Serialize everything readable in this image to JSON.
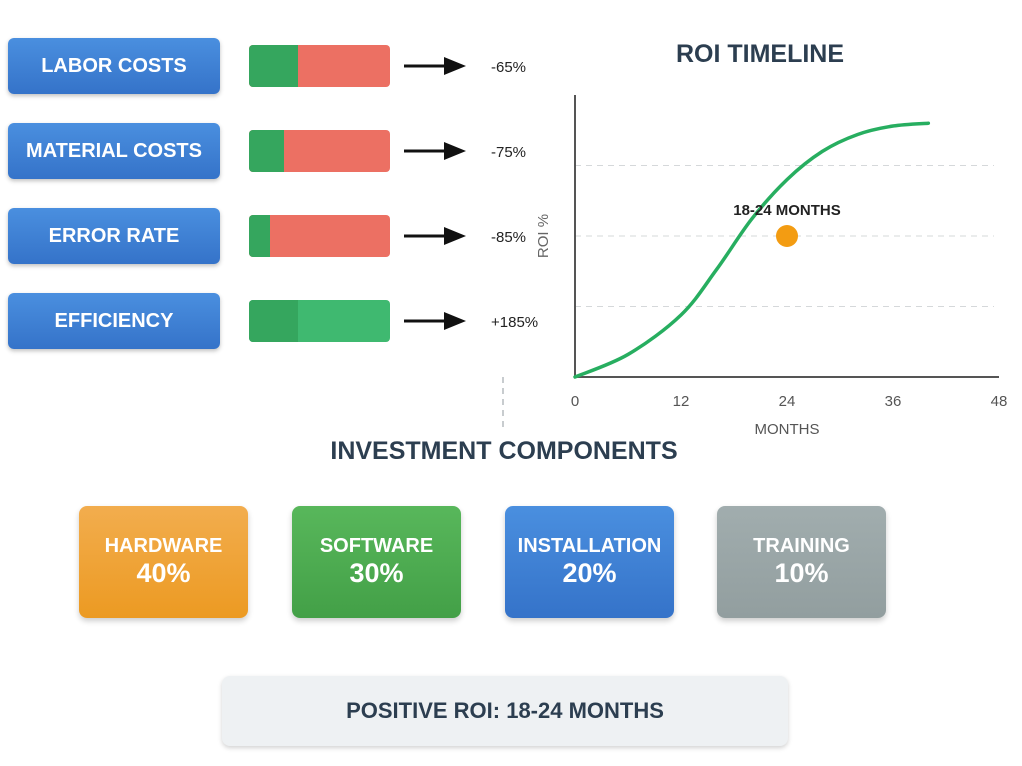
{
  "metrics": [
    {
      "label": "LABOR COSTS",
      "change": "-65%",
      "fill": 0.35,
      "kind": "reduction"
    },
    {
      "label": "MATERIAL COSTS",
      "change": "-75%",
      "fill": 0.25,
      "kind": "reduction"
    },
    {
      "label": "ERROR RATE",
      "change": "-85%",
      "fill": 0.15,
      "kind": "reduction"
    },
    {
      "label": "EFFICIENCY",
      "change": "+185%",
      "fill": 0.35,
      "kind": "increase"
    }
  ],
  "chart_data": {
    "type": "line",
    "title": "ROI TIMELINE",
    "xlabel": "MONTHS",
    "ylabel": "ROI %",
    "x_ticks": [
      0,
      12,
      24,
      36,
      48
    ],
    "xlim": [
      0,
      48
    ],
    "grid": "dashed horizontal",
    "series": [
      {
        "color": "#27ae60",
        "x": [
          0,
          6,
          12,
          16,
          20,
          24,
          28,
          32,
          36,
          40
        ],
        "y": [
          0,
          8,
          22,
          38,
          56,
          70,
          80,
          86,
          89,
          90
        ]
      }
    ],
    "marker": {
      "x": 24,
      "y": 50,
      "label": "18-24 MONTHS",
      "color": "#f39c12"
    }
  },
  "components": {
    "title": "INVESTMENT COMPONENTS",
    "items": [
      {
        "name": "HARDWARE",
        "pct": "40%"
      },
      {
        "name": "SOFTWARE",
        "pct": "30%"
      },
      {
        "name": "INSTALLATION",
        "pct": "20%"
      },
      {
        "name": "TRAINING",
        "pct": "10%"
      }
    ]
  },
  "summary": "POSITIVE ROI: 18-24 MONTHS",
  "colors": {
    "button_blue": "#3f82d4",
    "reduction_bar": "#ec7063",
    "increase_bar": "#3fb970",
    "base_green": "#35a65e",
    "hardware": "#f0a030",
    "software": "#48a84c",
    "installation": "#3a7dd0",
    "training": "#95a5a6"
  }
}
